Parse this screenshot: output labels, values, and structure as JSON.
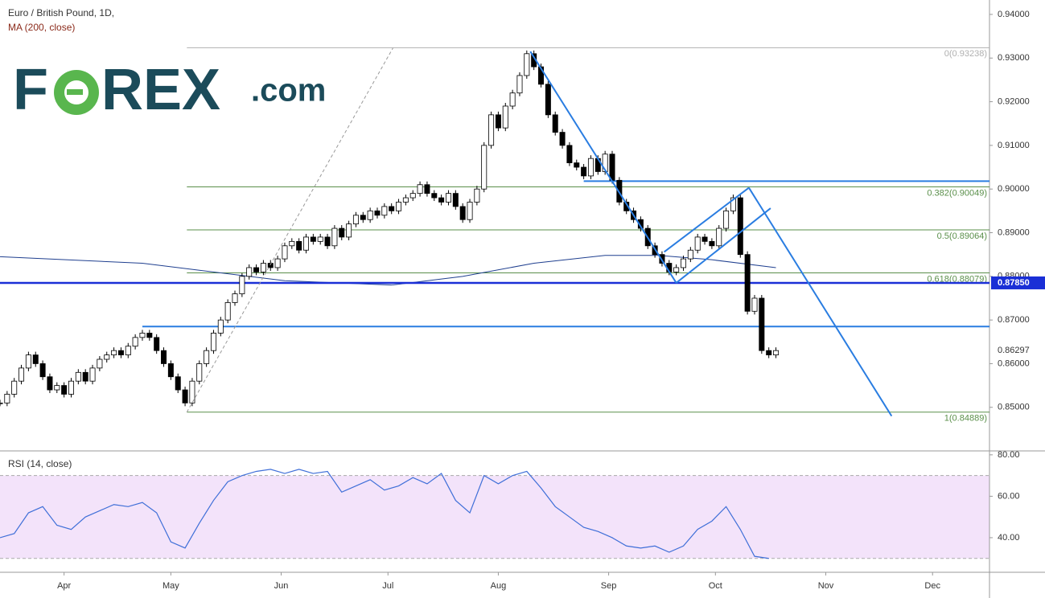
{
  "chart_data": {
    "type": "candlestick",
    "title": "Euro / British Pound, 1D,",
    "subtitle": "MA (200, close)",
    "logo": [
      "F",
      "REX",
      ".com"
    ],
    "x": [
      0,
      2,
      4,
      6,
      8,
      10,
      12,
      14,
      16,
      18,
      20,
      22,
      24,
      26,
      28,
      30,
      32,
      34,
      36,
      38,
      40,
      42,
      44,
      46,
      48,
      50,
      52,
      54,
      56,
      58,
      60,
      62,
      64,
      66,
      68,
      70,
      72,
      74,
      76,
      78,
      80,
      82,
      84,
      86,
      88,
      90,
      92,
      94,
      96,
      98,
      100,
      102,
      104,
      106,
      108,
      110,
      112,
      114,
      116,
      118,
      120,
      122,
      124,
      126,
      128,
      130,
      132,
      134,
      136,
      138,
      140,
      142,
      144,
      146,
      148,
      150,
      152,
      154,
      156,
      158,
      160,
      162,
      164,
      166,
      168,
      170,
      172,
      174,
      176,
      178,
      180,
      182,
      184,
      186,
      188,
      190,
      192,
      194,
      196,
      198,
      200,
      202,
      204,
      206,
      208,
      210,
      212,
      214,
      216,
      218
    ],
    "values": [
      0.851,
      0.853,
      0.856,
      0.859,
      0.862,
      0.86,
      0.857,
      0.854,
      0.855,
      0.853,
      0.856,
      0.858,
      0.856,
      0.859,
      0.861,
      0.862,
      0.863,
      0.862,
      0.864,
      0.866,
      0.867,
      0.866,
      0.863,
      0.86,
      0.857,
      0.854,
      0.851,
      0.856,
      0.86,
      0.863,
      0.867,
      0.87,
      0.874,
      0.876,
      0.88,
      0.882,
      0.881,
      0.883,
      0.882,
      0.884,
      0.887,
      0.888,
      0.886,
      0.889,
      0.888,
      0.889,
      0.887,
      0.891,
      0.889,
      0.892,
      0.894,
      0.893,
      0.895,
      0.894,
      0.896,
      0.895,
      0.897,
      0.898,
      0.899,
      0.901,
      0.899,
      0.898,
      0.897,
      0.899,
      0.896,
      0.893,
      0.897,
      0.9,
      0.91,
      0.917,
      0.914,
      0.919,
      0.922,
      0.926,
      0.931,
      0.928,
      0.924,
      0.917,
      0.913,
      0.91,
      0.906,
      0.905,
      0.903,
      0.907,
      0.904,
      0.908,
      0.902,
      0.897,
      0.895,
      0.893,
      0.891,
      0.887,
      0.885,
      0.883,
      0.881,
      0.882,
      0.884,
      0.886,
      0.889,
      0.888,
      0.887,
      0.891,
      0.895,
      0.898,
      0.885,
      0.872,
      0.875,
      0.863,
      0.862,
      0.863
    ],
    "ma": {
      "color": "#1f3f8f",
      "x": [
        0,
        40,
        80,
        110,
        130,
        150,
        170,
        185,
        200,
        218
      ],
      "values": [
        0.8845,
        0.883,
        0.879,
        0.878,
        0.88,
        0.883,
        0.8848,
        0.8848,
        0.8838,
        0.882
      ]
    },
    "xlim": [
      0,
      278
    ],
    "xticks": [
      {
        "value": 18,
        "label": "Apr"
      },
      {
        "value": 48,
        "label": "May"
      },
      {
        "value": 79,
        "label": "Jun"
      },
      {
        "value": 109,
        "label": "Jul"
      },
      {
        "value": 140,
        "label": "Aug"
      },
      {
        "value": 171,
        "label": "Sep"
      },
      {
        "value": 201,
        "label": "Oct"
      },
      {
        "value": 232,
        "label": "Nov"
      },
      {
        "value": 262,
        "label": "Dec"
      }
    ],
    "ylim": [
      0.8402,
      0.9433
    ],
    "yticks": [
      {
        "value": 0.85,
        "label": "0.85000"
      },
      {
        "value": 0.86,
        "label": "0.86000"
      },
      {
        "value": 0.87,
        "label": "0.87000"
      },
      {
        "value": 0.88,
        "label": "0.88000"
      },
      {
        "value": 0.89,
        "label": "0.89000"
      },
      {
        "value": 0.9,
        "label": "0.90000"
      },
      {
        "value": 0.91,
        "label": "0.91000"
      },
      {
        "value": 0.92,
        "label": "0.92000"
      },
      {
        "value": 0.93,
        "label": "0.93000"
      },
      {
        "value": 0.94,
        "label": "0.94000"
      }
    ],
    "last_price": {
      "value": 0.86297,
      "label": "0.86297"
    },
    "marked_level": {
      "value": 0.8785,
      "label": "0.87850",
      "color": "#1a2fd6"
    },
    "levels": [
      {
        "value": 0.8685,
        "from": 40,
        "color": "#2a7de1"
      },
      {
        "value": 0.9018,
        "from": 164,
        "color": "#2a7de1"
      }
    ],
    "fib_from": 52.5,
    "fib": [
      {
        "value": 0.93238,
        "label": "0(0.93238)",
        "color": "#b0b0b0"
      },
      {
        "value": 0.90049,
        "label": "0.382(0.90049)",
        "color": "#5a8f4a"
      },
      {
        "value": 0.89064,
        "label": "0.5(0.89064)",
        "color": "#5a8f4a"
      },
      {
        "value": 0.88079,
        "label": "0.618(0.88079)",
        "color": "#5a8f4a"
      },
      {
        "value": 0.84889,
        "label": "1(0.84889)",
        "color": "#5a8f4a"
      }
    ],
    "trendlines": [
      {
        "x": [
          52.5,
          110.4
        ],
        "y": [
          0.8489,
          0.9323
        ],
        "color": "#999999",
        "dashed": true
      },
      {
        "x": [
          149,
          190
        ],
        "y": [
          0.9315,
          0.8785
        ],
        "color": "#2a7de1"
      },
      {
        "x": [
          190,
          216.5
        ],
        "y": [
          0.8785,
          0.8956
        ],
        "color": "#2a7de1"
      },
      {
        "x": [
          186.6,
          210.4
        ],
        "y": [
          0.8856,
          0.9003
        ],
        "color": "#2a7de1"
      },
      {
        "x": [
          210.4,
          250.5
        ],
        "y": [
          0.9003,
          0.848
        ],
        "color": "#2a7de1"
      }
    ],
    "rsi": {
      "title": "RSI (14, close)",
      "color": "#3f6fd8",
      "x": [
        0,
        4,
        8,
        12,
        16,
        20,
        24,
        28,
        32,
        36,
        40,
        44,
        48,
        52,
        56,
        60,
        64,
        68,
        72,
        76,
        80,
        84,
        88,
        92,
        96,
        100,
        104,
        108,
        112,
        116,
        120,
        124,
        128,
        132,
        136,
        140,
        144,
        148,
        152,
        156,
        160,
        164,
        168,
        172,
        176,
        180,
        184,
        188,
        192,
        196,
        200,
        204,
        208,
        212,
        216
      ],
      "values": [
        40,
        42,
        52,
        55,
        46,
        44,
        50,
        53,
        56,
        55,
        57,
        52,
        38,
        35,
        47,
        58,
        67,
        70,
        72,
        73,
        71,
        73,
        71,
        72,
        62,
        65,
        68,
        63,
        65,
        69,
        66,
        71,
        58,
        52,
        70,
        66,
        70,
        72,
        64,
        55,
        50,
        45,
        43,
        40,
        36,
        35,
        36,
        33,
        36,
        44,
        48,
        55,
        44,
        31,
        30
      ],
      "ylim": [
        23.3,
        81.5
      ],
      "yticks": [
        {
          "value": 40,
          "label": "40.00"
        },
        {
          "value": 60,
          "label": "60.00"
        },
        {
          "value": 80,
          "label": "80.00"
        }
      ],
      "bands": [
        30,
        70
      ]
    }
  }
}
